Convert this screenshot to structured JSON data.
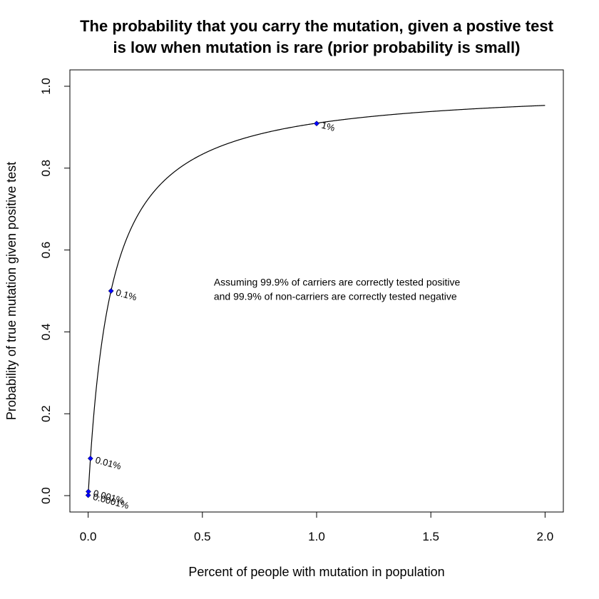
{
  "chart_data": {
    "type": "line",
    "title_lines": [
      "The probability that you carry the mutation, given a postive test",
      "is low when mutation is rare (prior probability is small)"
    ],
    "xlabel": "Percent of people with mutation in population",
    "ylabel": "Probability of true mutation given positive test",
    "xlim": [
      -0.08,
      2.08
    ],
    "ylim": [
      -0.04,
      1.04
    ],
    "x_ticks": [
      0.0,
      0.5,
      1.0,
      1.5,
      2.0
    ],
    "x_tick_labels": [
      "0.0",
      "0.5",
      "1.0",
      "1.5",
      "2.0"
    ],
    "y_ticks": [
      0.0,
      0.2,
      0.4,
      0.6,
      0.8,
      1.0
    ],
    "y_tick_labels": [
      "0.0",
      "0.2",
      "0.4",
      "0.6",
      "0.8",
      "1.0"
    ],
    "grid": false,
    "curve": {
      "description_formula": "posterior = 0.999*p / (0.999*p + 0.001*(1-p)), p = x/100",
      "sensitivity": 0.999,
      "specificity": 0.999,
      "x_range": [
        0.0001,
        2.0
      ]
    },
    "points": [
      {
        "x": 0.0001,
        "y": 0.001,
        "label": "0.0001%"
      },
      {
        "x": 0.001,
        "y": 0.0099,
        "label": "0.001%"
      },
      {
        "x": 0.01,
        "y": 0.0908,
        "label": "0.01%"
      },
      {
        "x": 0.1,
        "y": 0.5,
        "label": "0.1%"
      },
      {
        "x": 1.0,
        "y": 0.909,
        "label": "1%"
      }
    ],
    "point_color": "#0000ff",
    "line_color": "#000000",
    "annotation_lines": [
      "Assuming 99.9% of carriers are correctly tested positive",
      "and 99.9% of non-carriers are correctly tested negative"
    ],
    "annotation_anchor": {
      "x": 0.55,
      "y": 0.51
    }
  }
}
